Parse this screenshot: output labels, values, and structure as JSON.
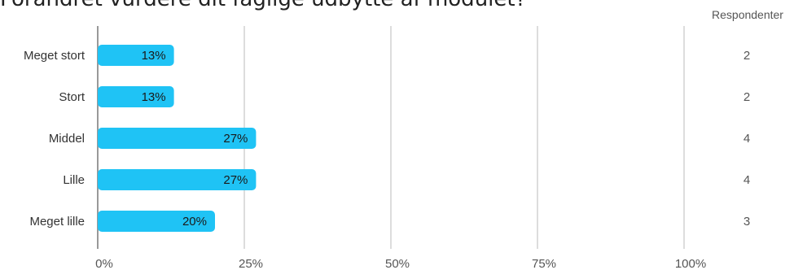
{
  "title": "Forandret vurdere dit faglige udbytte af modulet?",
  "chart_data": {
    "type": "bar",
    "orientation": "horizontal",
    "title": "Forandret vurdere dit faglige udbytte af modulet?",
    "categories": [
      "Meget stort",
      "Stort",
      "Middel",
      "Lille",
      "Meget lille"
    ],
    "values": [
      13,
      13,
      27,
      27,
      20
    ],
    "value_labels": [
      "13%",
      "13%",
      "27%",
      "27%",
      "20%"
    ],
    "respondents_header": "Respondenter",
    "respondents": [
      "2",
      "2",
      "4",
      "4",
      "3"
    ],
    "xlim": [
      0,
      100
    ],
    "x_ticks": [
      0,
      25,
      50,
      75,
      100
    ],
    "x_tick_labels": [
      "0%",
      "25%",
      "50%",
      "75%",
      "100%"
    ],
    "grid": true,
    "colors": {
      "bar": "#1fc3f5",
      "grid": "#bbbbbb",
      "axis": "#999999",
      "text": "#333333",
      "muted_text": "#555555"
    }
  }
}
